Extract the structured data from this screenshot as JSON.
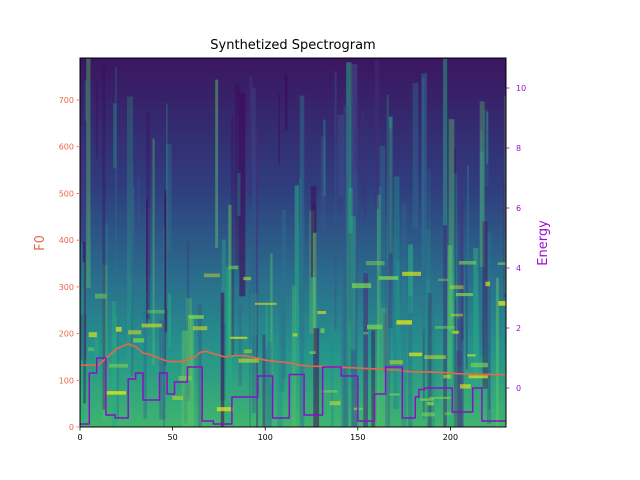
{
  "chart_data": {
    "type": "line",
    "title": "Synthetized Spectrogram",
    "xlabel": "",
    "ylabel": "F0",
    "ylabel_right": "Energy",
    "xlim": [
      0,
      230
    ],
    "ylim": [
      0,
      790
    ],
    "ylim_right": [
      -1.3,
      11.0
    ],
    "x_ticks": [
      0,
      50,
      100,
      150,
      200
    ],
    "y_ticks": [
      0,
      100,
      200,
      300,
      400,
      500,
      600,
      700
    ],
    "y_ticks_right": [
      0,
      2,
      4,
      6,
      8,
      10
    ],
    "grid": false,
    "legend": "none",
    "colors": {
      "f0": "#e8674a",
      "energy": "#8a10c8",
      "f0_axis": "#e8674a",
      "energy_axis": "#9b0fd0"
    },
    "background": "spectrogram",
    "series": [
      {
        "axis": "left",
        "x": [
          0,
          10,
          15,
          20,
          26,
          30,
          34,
          38,
          44,
          48,
          55,
          62,
          65,
          68,
          72,
          78,
          84,
          90,
          96,
          100,
          106,
          112,
          118,
          124,
          130,
          140,
          150,
          160,
          170,
          180,
          188,
          195,
          205,
          215,
          225,
          230
        ],
        "values": [
          132,
          133,
          150,
          168,
          178,
          172,
          158,
          155,
          145,
          140,
          140,
          150,
          160,
          162,
          157,
          150,
          153,
          152,
          147,
          143,
          140,
          138,
          133,
          130,
          130,
          128,
          126,
          124,
          122,
          118,
          118,
          117,
          114,
          113,
          112,
          112
        ]
      },
      {
        "axis": "right",
        "x": [
          0,
          5,
          5,
          9,
          9,
          14,
          14,
          19,
          19,
          26,
          26,
          30,
          30,
          34,
          34,
          43,
          43,
          47,
          47,
          51,
          51,
          58,
          58,
          66,
          66,
          72,
          72,
          82,
          82,
          96,
          96,
          104,
          104,
          113,
          113,
          121,
          121,
          131,
          131,
          141,
          141,
          150,
          150,
          159,
          159,
          165,
          165,
          174,
          174,
          181,
          181,
          183,
          183,
          186,
          186,
          201,
          201,
          212,
          212,
          217,
          217,
          230
        ],
        "values": [
          -1.2,
          -1.2,
          0.5,
          0.5,
          1.0,
          1.0,
          -0.9,
          -0.9,
          -1.0,
          -1.0,
          0.3,
          0.3,
          0.5,
          0.5,
          -0.4,
          -0.4,
          0.5,
          0.5,
          -0.2,
          -0.2,
          0.2,
          0.2,
          0.7,
          0.7,
          -1.1,
          -1.1,
          -1.2,
          -1.2,
          -0.3,
          -0.3,
          0.4,
          0.4,
          -1.0,
          -1.0,
          0.45,
          0.45,
          -0.9,
          -0.9,
          0.7,
          0.7,
          0.4,
          0.4,
          -1.1,
          -1.1,
          -0.2,
          -0.2,
          0.7,
          0.7,
          -1.0,
          -1.0,
          -0.3,
          -0.3,
          -0.05,
          -0.05,
          0.0,
          0.0,
          -0.8,
          -0.8,
          0.0,
          0.0,
          -1.1,
          -1.1
        ]
      }
    ]
  }
}
